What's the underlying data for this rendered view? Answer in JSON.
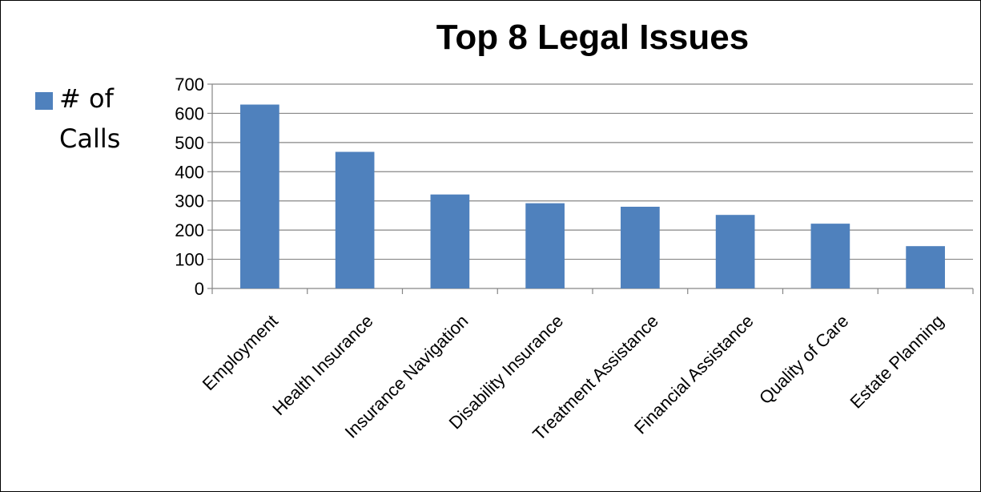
{
  "chart_data": {
    "type": "bar",
    "title": "Top 8 Legal Issues",
    "categories": [
      "Employment",
      "Health Insurance",
      "Insurance Navigation",
      "Disability Insurance",
      "Treatment Assistance",
      "Financial Assistance",
      "Quality of Care",
      "Estate Planning"
    ],
    "series": [
      {
        "name": "# of Calls",
        "values": [
          630,
          468,
          322,
          292,
          280,
          252,
          222,
          145
        ],
        "color": "#4f81bd"
      }
    ],
    "xlabel": "",
    "ylabel": "",
    "ylim": [
      0,
      700
    ],
    "yticks": [
      0,
      100,
      200,
      300,
      400,
      500,
      600,
      700
    ],
    "grid": true,
    "legend_position": "left"
  }
}
